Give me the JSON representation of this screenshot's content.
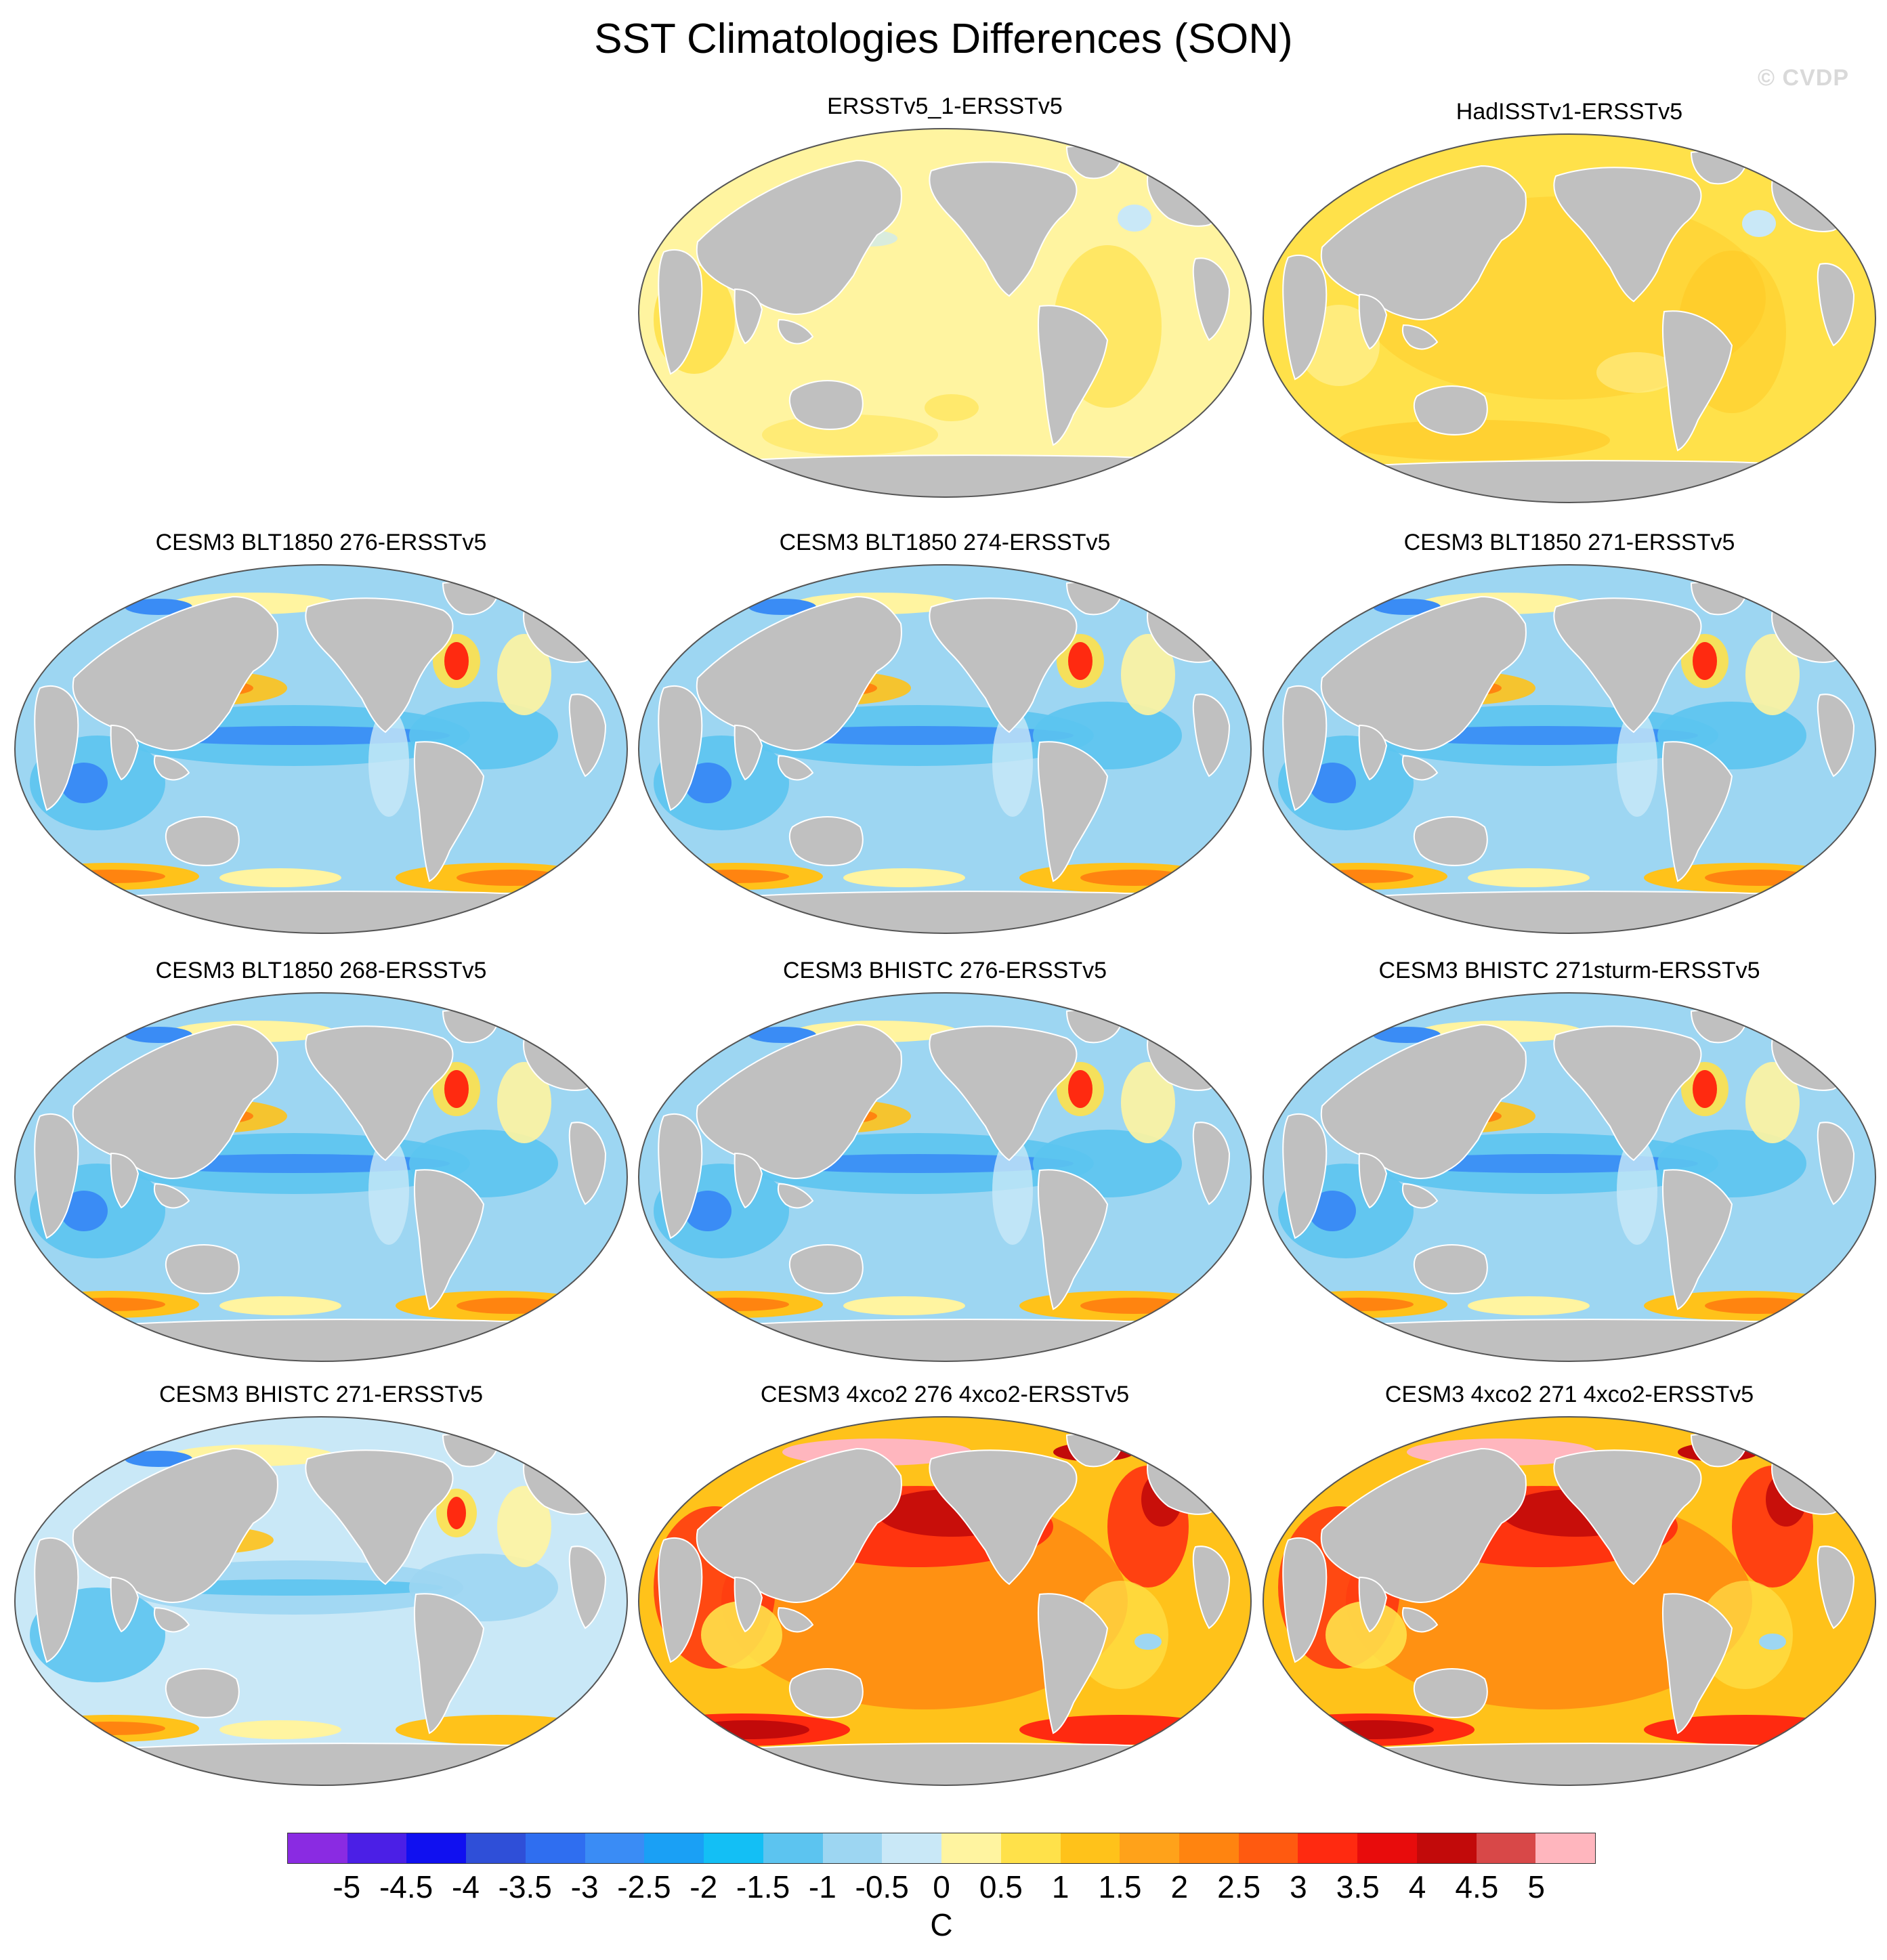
{
  "figure": {
    "title": "SST Climatologies Differences (SON)",
    "watermark": "© CVDP"
  },
  "panels": [
    {
      "title": "ERSSTv5_1-ERSSTv5",
      "pattern": "obs_small"
    },
    {
      "title": "HadISSTv1-ERSSTv5",
      "pattern": "obs_warm"
    },
    {
      "title": "CESM3 BLT1850 276-ERSSTv5",
      "pattern": "model_cool"
    },
    {
      "title": "CESM3 BLT1850 274-ERSSTv5",
      "pattern": "model_cool"
    },
    {
      "title": "CESM3 BLT1850 271-ERSSTv5",
      "pattern": "model_cool"
    },
    {
      "title": "CESM3 BLT1850 268-ERSSTv5",
      "pattern": "model_cool"
    },
    {
      "title": "CESM3 BHISTC 276-ERSSTv5",
      "pattern": "model_cool"
    },
    {
      "title": "CESM3 BHISTC 271sturm-ERSSTv5",
      "pattern": "model_cool"
    },
    {
      "title": "CESM3 BHISTC 271-ERSSTv5",
      "pattern": "model_cool_light"
    },
    {
      "title": "CESM3 4xco2 276 4xco2-ERSSTv5",
      "pattern": "model_warm"
    },
    {
      "title": "CESM3 4xco2 271 4xco2-ERSSTv5",
      "pattern": "model_warm"
    }
  ],
  "colorbar": {
    "unit": "C",
    "tick_labels": [
      "-5",
      "-4.5",
      "-4",
      "-3.5",
      "-3",
      "-2.5",
      "-2",
      "-1.5",
      "-1",
      "-0.5",
      "0",
      "0.5",
      "1",
      "1.5",
      "2",
      "2.5",
      "3",
      "3.5",
      "4",
      "4.5",
      "5"
    ],
    "colors": [
      "#8a2be2",
      "#4b1fe6",
      "#1010f0",
      "#2f4fd8",
      "#2f6ef0",
      "#3a8cf5",
      "#1aa0f5",
      "#13bff5",
      "#5cc4f0",
      "#9dd6f2",
      "#c9e8f7",
      "#fff4a0",
      "#ffe14a",
      "#ffc21a",
      "#ffa21a",
      "#ff8410",
      "#ff5a10",
      "#ff2a10",
      "#e80c0c",
      "#c20a0a",
      "#d84848",
      "#ffb6be"
    ]
  },
  "palette": {
    "land": "#c0c0c0",
    "ocean_near_zero": "#fff4a0",
    "light_warm": "#ffe14a",
    "light_cool": "#c9e8f7",
    "cool": "#9dd6f2",
    "mid_cool": "#5cc4f0",
    "strong_cool": "#3a8cf5",
    "warm": "#ffc21a",
    "hot": "#ff8410",
    "very_hot": "#ff2a10",
    "extreme": "#c20a0a",
    "pink": "#ffb6be"
  }
}
